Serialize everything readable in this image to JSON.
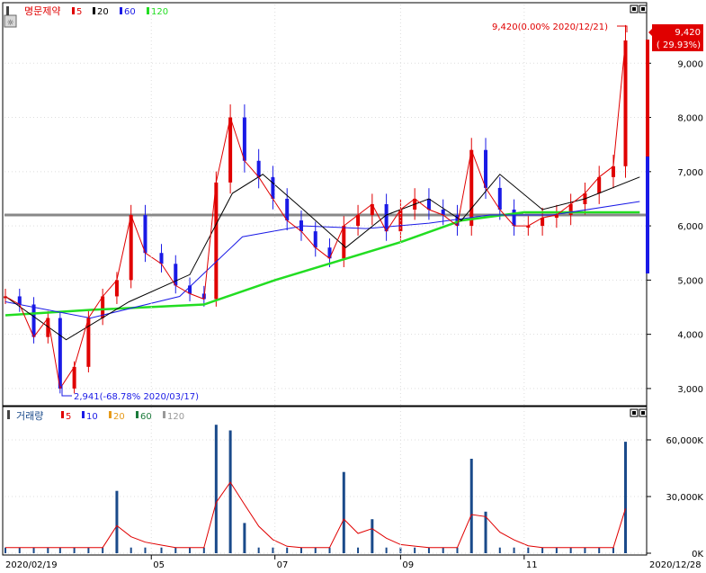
{
  "stock": {
    "name": "명문제약",
    "legend": [
      {
        "label": "5",
        "color": "#e00000"
      },
      {
        "label": "20",
        "color": "#000000"
      },
      {
        "label": "60",
        "color": "#1a1ae6"
      },
      {
        "label": "120",
        "color": "#22dd22"
      }
    ]
  },
  "volume": {
    "name": "거래량",
    "legend": [
      {
        "label": "5",
        "color": "#e00000"
      },
      {
        "label": "10",
        "color": "#1a1ae6"
      },
      {
        "label": "20",
        "color": "#e69a1a"
      },
      {
        "label": "60",
        "color": "#1a7a3a"
      },
      {
        "label": "120",
        "color": "#999999"
      }
    ]
  },
  "price_axis": {
    "ticks": [
      "9,000",
      "8,000",
      "7,000",
      "6,000",
      "5,000",
      "4,000",
      "3,000"
    ]
  },
  "volume_axis": {
    "ticks": [
      "60,000K",
      "30,000K",
      "0K"
    ]
  },
  "x_axis": {
    "start": "2020/02/19",
    "months": [
      "05",
      "07",
      "09",
      "11"
    ],
    "end": "2020/12/28"
  },
  "annotations": {
    "high": "9,420(0.00% 2020/12/21)",
    "low": "2,941(-68.78% 2020/03/17)",
    "current_price": "9,420",
    "current_change": "( 29.93%)",
    "reference_line": 6200
  },
  "colors": {
    "up": "#e00000",
    "down": "#1a1ae6",
    "volume_bar": "#1a4a8a",
    "ref_line": "#888888"
  },
  "chart_data": [
    {
      "type": "candlestick",
      "title": "명문제약",
      "x_range": [
        "2020/02/19",
        "2020/12/28"
      ],
      "ylim": [
        2700,
        10000
      ],
      "series_close": [
        {
          "x": "2020/02/19",
          "y": 4700
        },
        {
          "x": "2020/02/26",
          "y": 4550
        },
        {
          "x": "2020/03/04",
          "y": 3950
        },
        {
          "x": "2020/03/11",
          "y": 4300
        },
        {
          "x": "2020/03/17",
          "y": 3000
        },
        {
          "x": "2020/03/24",
          "y": 3400
        },
        {
          "x": "2020/03/31",
          "y": 4300
        },
        {
          "x": "2020/04/07",
          "y": 4700
        },
        {
          "x": "2020/04/14",
          "y": 5000
        },
        {
          "x": "2020/04/21",
          "y": 6200
        },
        {
          "x": "2020/04/28",
          "y": 5500
        },
        {
          "x": "2020/05/06",
          "y": 5300
        },
        {
          "x": "2020/05/13",
          "y": 4900
        },
        {
          "x": "2020/05/20",
          "y": 4750
        },
        {
          "x": "2020/05/27",
          "y": 4650
        },
        {
          "x": "2020/06/02",
          "y": 6800
        },
        {
          "x": "2020/06/09",
          "y": 8000
        },
        {
          "x": "2020/06/16",
          "y": 7200
        },
        {
          "x": "2020/06/23",
          "y": 6900
        },
        {
          "x": "2020/06/30",
          "y": 6500
        },
        {
          "x": "2020/07/07",
          "y": 6100
        },
        {
          "x": "2020/07/14",
          "y": 5900
        },
        {
          "x": "2020/07/21",
          "y": 5600
        },
        {
          "x": "2020/07/28",
          "y": 5400
        },
        {
          "x": "2020/08/04",
          "y": 6000
        },
        {
          "x": "2020/08/11",
          "y": 6200
        },
        {
          "x": "2020/08/18",
          "y": 6400
        },
        {
          "x": "2020/08/25",
          "y": 5900
        },
        {
          "x": "2020/09/01",
          "y": 6300
        },
        {
          "x": "2020/09/08",
          "y": 6500
        },
        {
          "x": "2020/09/15",
          "y": 6300
        },
        {
          "x": "2020/09/22",
          "y": 6200
        },
        {
          "x": "2020/09/29",
          "y": 6000
        },
        {
          "x": "2020/10/06",
          "y": 7400
        },
        {
          "x": "2020/10/13",
          "y": 6700
        },
        {
          "x": "2020/10/20",
          "y": 6300
        },
        {
          "x": "2020/10/27",
          "y": 6000
        },
        {
          "x": "2020/11/03",
          "y": 6000
        },
        {
          "x": "2020/11/10",
          "y": 6150
        },
        {
          "x": "2020/11/17",
          "y": 6200
        },
        {
          "x": "2020/11/24",
          "y": 6400
        },
        {
          "x": "2020/12/01",
          "y": 6600
        },
        {
          "x": "2020/12/08",
          "y": 6900
        },
        {
          "x": "2020/12/15",
          "y": 7100
        },
        {
          "x": "2020/12/21",
          "y": 9420
        }
      ],
      "ma120": [
        {
          "x": "2020/02/19",
          "y": 4350
        },
        {
          "x": "2020/04/01",
          "y": 4450
        },
        {
          "x": "2020/05/27",
          "y": 4550
        },
        {
          "x": "2020/07/01",
          "y": 5000
        },
        {
          "x": "2020/08/01",
          "y": 5350
        },
        {
          "x": "2020/09/01",
          "y": 5700
        },
        {
          "x": "2020/10/01",
          "y": 6100
        },
        {
          "x": "2020/11/01",
          "y": 6250
        },
        {
          "x": "2020/12/28",
          "y": 6250
        }
      ],
      "ma60": [
        {
          "x": "2020/02/19",
          "y": 4600
        },
        {
          "x": "2020/04/01",
          "y": 4300
        },
        {
          "x": "2020/05/15",
          "y": 4700
        },
        {
          "x": "2020/06/15",
          "y": 5800
        },
        {
          "x": "2020/07/15",
          "y": 6000
        },
        {
          "x": "2020/08/15",
          "y": 5950
        },
        {
          "x": "2020/09/15",
          "y": 6050
        },
        {
          "x": "2020/10/15",
          "y": 6200
        },
        {
          "x": "2020/11/15",
          "y": 6200
        },
        {
          "x": "2020/12/28",
          "y": 6450
        }
      ],
      "ma20": [
        {
          "x": "2020/02/19",
          "y": 4700
        },
        {
          "x": "2020/03/20",
          "y": 3900
        },
        {
          "x": "2020/04/20",
          "y": 4600
        },
        {
          "x": "2020/05/20",
          "y": 5100
        },
        {
          "x": "2020/06/10",
          "y": 6600
        },
        {
          "x": "2020/06/25",
          "y": 6950
        },
        {
          "x": "2020/07/15",
          "y": 6300
        },
        {
          "x": "2020/08/05",
          "y": 5600
        },
        {
          "x": "2020/08/25",
          "y": 6200
        },
        {
          "x": "2020/09/15",
          "y": 6500
        },
        {
          "x": "2020/10/01",
          "y": 6100
        },
        {
          "x": "2020/10/20",
          "y": 6950
        },
        {
          "x": "2020/11/10",
          "y": 6300
        },
        {
          "x": "2020/12/01",
          "y": 6500
        },
        {
          "x": "2020/12/28",
          "y": 6900
        }
      ]
    },
    {
      "type": "bar",
      "title": "거래량",
      "unit": "K",
      "ylim": [
        0,
        70000
      ],
      "bars": [
        {
          "x": "2020/04/14",
          "y": 33000
        },
        {
          "x": "2020/06/02",
          "y": 68000
        },
        {
          "x": "2020/06/09",
          "y": 65000
        },
        {
          "x": "2020/06/16",
          "y": 16000
        },
        {
          "x": "2020/08/04",
          "y": 43000
        },
        {
          "x": "2020/08/18",
          "y": 18000
        },
        {
          "x": "2020/10/06",
          "y": 50000
        },
        {
          "x": "2020/10/13",
          "y": 22000
        },
        {
          "x": "2020/12/21",
          "y": 59000
        }
      ],
      "baseline_volume": 3000
    }
  ]
}
